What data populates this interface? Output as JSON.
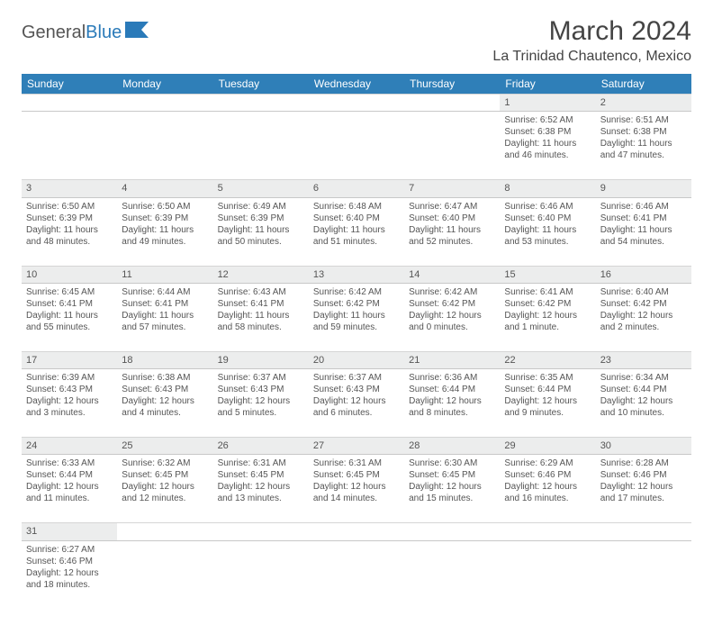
{
  "brand": {
    "part1": "General",
    "part2": "Blue"
  },
  "title": "March 2024",
  "location": "La Trinidad Chautenco, Mexico",
  "colors": {
    "header_bg": "#2f7fb8",
    "daynum_bg": "#eceded",
    "text": "#555555"
  },
  "dayHeaders": [
    "Sunday",
    "Monday",
    "Tuesday",
    "Wednesday",
    "Thursday",
    "Friday",
    "Saturday"
  ],
  "weeks": [
    {
      "nums": [
        "",
        "",
        "",
        "",
        "",
        "1",
        "2"
      ],
      "cells": [
        null,
        null,
        null,
        null,
        null,
        {
          "sunrise": "Sunrise: 6:52 AM",
          "sunset": "Sunset: 6:38 PM",
          "day1": "Daylight: 11 hours",
          "day2": "and 46 minutes."
        },
        {
          "sunrise": "Sunrise: 6:51 AM",
          "sunset": "Sunset: 6:38 PM",
          "day1": "Daylight: 11 hours",
          "day2": "and 47 minutes."
        }
      ]
    },
    {
      "nums": [
        "3",
        "4",
        "5",
        "6",
        "7",
        "8",
        "9"
      ],
      "cells": [
        {
          "sunrise": "Sunrise: 6:50 AM",
          "sunset": "Sunset: 6:39 PM",
          "day1": "Daylight: 11 hours",
          "day2": "and 48 minutes."
        },
        {
          "sunrise": "Sunrise: 6:50 AM",
          "sunset": "Sunset: 6:39 PM",
          "day1": "Daylight: 11 hours",
          "day2": "and 49 minutes."
        },
        {
          "sunrise": "Sunrise: 6:49 AM",
          "sunset": "Sunset: 6:39 PM",
          "day1": "Daylight: 11 hours",
          "day2": "and 50 minutes."
        },
        {
          "sunrise": "Sunrise: 6:48 AM",
          "sunset": "Sunset: 6:40 PM",
          "day1": "Daylight: 11 hours",
          "day2": "and 51 minutes."
        },
        {
          "sunrise": "Sunrise: 6:47 AM",
          "sunset": "Sunset: 6:40 PM",
          "day1": "Daylight: 11 hours",
          "day2": "and 52 minutes."
        },
        {
          "sunrise": "Sunrise: 6:46 AM",
          "sunset": "Sunset: 6:40 PM",
          "day1": "Daylight: 11 hours",
          "day2": "and 53 minutes."
        },
        {
          "sunrise": "Sunrise: 6:46 AM",
          "sunset": "Sunset: 6:41 PM",
          "day1": "Daylight: 11 hours",
          "day2": "and 54 minutes."
        }
      ]
    },
    {
      "nums": [
        "10",
        "11",
        "12",
        "13",
        "14",
        "15",
        "16"
      ],
      "cells": [
        {
          "sunrise": "Sunrise: 6:45 AM",
          "sunset": "Sunset: 6:41 PM",
          "day1": "Daylight: 11 hours",
          "day2": "and 55 minutes."
        },
        {
          "sunrise": "Sunrise: 6:44 AM",
          "sunset": "Sunset: 6:41 PM",
          "day1": "Daylight: 11 hours",
          "day2": "and 57 minutes."
        },
        {
          "sunrise": "Sunrise: 6:43 AM",
          "sunset": "Sunset: 6:41 PM",
          "day1": "Daylight: 11 hours",
          "day2": "and 58 minutes."
        },
        {
          "sunrise": "Sunrise: 6:42 AM",
          "sunset": "Sunset: 6:42 PM",
          "day1": "Daylight: 11 hours",
          "day2": "and 59 minutes."
        },
        {
          "sunrise": "Sunrise: 6:42 AM",
          "sunset": "Sunset: 6:42 PM",
          "day1": "Daylight: 12 hours",
          "day2": "and 0 minutes."
        },
        {
          "sunrise": "Sunrise: 6:41 AM",
          "sunset": "Sunset: 6:42 PM",
          "day1": "Daylight: 12 hours",
          "day2": "and 1 minute."
        },
        {
          "sunrise": "Sunrise: 6:40 AM",
          "sunset": "Sunset: 6:42 PM",
          "day1": "Daylight: 12 hours",
          "day2": "and 2 minutes."
        }
      ]
    },
    {
      "nums": [
        "17",
        "18",
        "19",
        "20",
        "21",
        "22",
        "23"
      ],
      "cells": [
        {
          "sunrise": "Sunrise: 6:39 AM",
          "sunset": "Sunset: 6:43 PM",
          "day1": "Daylight: 12 hours",
          "day2": "and 3 minutes."
        },
        {
          "sunrise": "Sunrise: 6:38 AM",
          "sunset": "Sunset: 6:43 PM",
          "day1": "Daylight: 12 hours",
          "day2": "and 4 minutes."
        },
        {
          "sunrise": "Sunrise: 6:37 AM",
          "sunset": "Sunset: 6:43 PM",
          "day1": "Daylight: 12 hours",
          "day2": "and 5 minutes."
        },
        {
          "sunrise": "Sunrise: 6:37 AM",
          "sunset": "Sunset: 6:43 PM",
          "day1": "Daylight: 12 hours",
          "day2": "and 6 minutes."
        },
        {
          "sunrise": "Sunrise: 6:36 AM",
          "sunset": "Sunset: 6:44 PM",
          "day1": "Daylight: 12 hours",
          "day2": "and 8 minutes."
        },
        {
          "sunrise": "Sunrise: 6:35 AM",
          "sunset": "Sunset: 6:44 PM",
          "day1": "Daylight: 12 hours",
          "day2": "and 9 minutes."
        },
        {
          "sunrise": "Sunrise: 6:34 AM",
          "sunset": "Sunset: 6:44 PM",
          "day1": "Daylight: 12 hours",
          "day2": "and 10 minutes."
        }
      ]
    },
    {
      "nums": [
        "24",
        "25",
        "26",
        "27",
        "28",
        "29",
        "30"
      ],
      "cells": [
        {
          "sunrise": "Sunrise: 6:33 AM",
          "sunset": "Sunset: 6:44 PM",
          "day1": "Daylight: 12 hours",
          "day2": "and 11 minutes."
        },
        {
          "sunrise": "Sunrise: 6:32 AM",
          "sunset": "Sunset: 6:45 PM",
          "day1": "Daylight: 12 hours",
          "day2": "and 12 minutes."
        },
        {
          "sunrise": "Sunrise: 6:31 AM",
          "sunset": "Sunset: 6:45 PM",
          "day1": "Daylight: 12 hours",
          "day2": "and 13 minutes."
        },
        {
          "sunrise": "Sunrise: 6:31 AM",
          "sunset": "Sunset: 6:45 PM",
          "day1": "Daylight: 12 hours",
          "day2": "and 14 minutes."
        },
        {
          "sunrise": "Sunrise: 6:30 AM",
          "sunset": "Sunset: 6:45 PM",
          "day1": "Daylight: 12 hours",
          "day2": "and 15 minutes."
        },
        {
          "sunrise": "Sunrise: 6:29 AM",
          "sunset": "Sunset: 6:46 PM",
          "day1": "Daylight: 12 hours",
          "day2": "and 16 minutes."
        },
        {
          "sunrise": "Sunrise: 6:28 AM",
          "sunset": "Sunset: 6:46 PM",
          "day1": "Daylight: 12 hours",
          "day2": "and 17 minutes."
        }
      ]
    },
    {
      "nums": [
        "31",
        "",
        "",
        "",
        "",
        "",
        ""
      ],
      "cells": [
        {
          "sunrise": "Sunrise: 6:27 AM",
          "sunset": "Sunset: 6:46 PM",
          "day1": "Daylight: 12 hours",
          "day2": "and 18 minutes."
        },
        null,
        null,
        null,
        null,
        null,
        null
      ]
    }
  ]
}
